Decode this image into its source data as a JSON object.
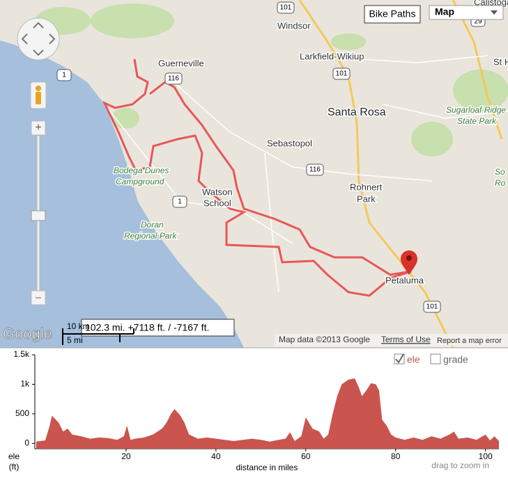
{
  "map": {
    "labels": [
      "Windsor",
      "Larkfield-Wikiup",
      "Guerneville",
      "Santa Rosa",
      "Sebastopol",
      "Bodega Dunes",
      "Campground",
      "Watson",
      "School",
      "Rohnert",
      "Park",
      "Doran",
      "Regional Park",
      "Sugarloaf Ridge",
      "State Park",
      "Petaluma",
      "Calistoga",
      "St H",
      "So",
      "Ro"
    ],
    "road_shields": [
      "101",
      "101",
      "101",
      "116",
      "116",
      "1",
      "1",
      "29"
    ],
    "controls": {
      "layer_button": "Bike Paths",
      "map_type": "Map",
      "zoom_in": "+",
      "zoom_out": "–"
    },
    "route_summary": "102.3 mi. +7118 ft. / -7167 ft.",
    "scale": {
      "metric": "10 km",
      "imperial": "5 mi"
    },
    "logo": "Google",
    "attribution": "Map data ©2013 Google",
    "terms": "Terms of Use",
    "report": "Report a map error"
  },
  "chart_data": {
    "type": "area",
    "x": [
      0,
      2,
      3,
      3.5,
      5,
      6,
      7,
      8,
      10,
      12,
      14,
      16,
      18,
      19.5,
      20.2,
      21,
      22,
      24,
      26,
      28,
      29,
      30,
      30.8,
      32,
      33,
      34,
      36,
      38,
      40,
      42,
      44,
      46,
      48,
      50,
      52,
      54,
      55.5,
      56.5,
      57.5,
      59,
      60,
      61.5,
      63,
      64,
      65,
      66,
      67,
      68,
      69.5,
      70.9,
      71.8,
      72.5,
      73.5,
      74.5,
      75.6,
      76.3,
      77,
      78,
      79,
      80,
      82,
      84,
      86,
      88,
      90,
      92,
      93,
      94,
      96,
      98,
      100,
      101,
      102,
      103
    ],
    "series": [
      {
        "name": "ele",
        "color": "#c9554e",
        "values": [
          30,
          50,
          300,
          470,
          350,
          200,
          250,
          150,
          120,
          80,
          100,
          90,
          60,
          120,
          300,
          60,
          80,
          100,
          150,
          250,
          350,
          500,
          580,
          480,
          350,
          150,
          80,
          100,
          80,
          60,
          40,
          60,
          80,
          60,
          30,
          60,
          80,
          190,
          40,
          120,
          440,
          250,
          200,
          80,
          150,
          500,
          800,
          1000,
          1080,
          1100,
          950,
          800,
          900,
          1020,
          1000,
          900,
          400,
          300,
          150,
          100,
          60,
          100,
          60,
          120,
          80,
          150,
          200,
          80,
          100,
          60,
          150,
          50,
          120,
          40
        ]
      }
    ],
    "xlim": [
      0,
      103
    ],
    "ylim": [
      -90,
      1500
    ],
    "xticks": [
      20,
      40,
      60,
      80,
      100
    ],
    "yticks": [
      {
        "value": 1500,
        "label": "1.5k"
      },
      {
        "value": 1000,
        "label": "1k"
      },
      500,
      0
    ],
    "x_label": "distance in miles",
    "y_label": "ele",
    "y_unit": "(ft)",
    "note": "drag to zoom in",
    "toggles": [
      {
        "label": "ele",
        "checked": true
      },
      {
        "label": "grade",
        "checked": false
      }
    ]
  }
}
